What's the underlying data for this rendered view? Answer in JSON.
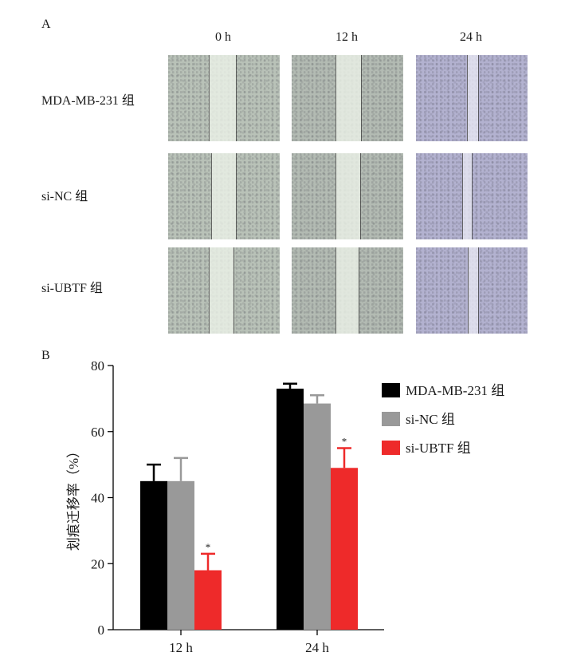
{
  "panels": {
    "a_label": "A",
    "b_label": "B"
  },
  "wound_images": {
    "columns": [
      "0  h",
      "12 h",
      "24 h"
    ],
    "rows": [
      "MDA-MB-231 组",
      "si-NC 组",
      "si-UBTF 组"
    ],
    "tint_colors": [
      "#b9c2b8",
      "#b3bbb3",
      "#b3b2d0"
    ]
  },
  "chart_data": {
    "type": "bar",
    "title": "",
    "xlabel": "",
    "ylabel": "划痕迁移率（%）",
    "categories": [
      "12 h",
      "24 h"
    ],
    "ylim": [
      0,
      80
    ],
    "yticks": [
      0,
      20,
      40,
      60,
      80
    ],
    "series": [
      {
        "name": "MDA-MB-231 组",
        "color": "#000000",
        "values": [
          45,
          73
        ],
        "errors": [
          5,
          1.5
        ]
      },
      {
        "name": "si-NC 组",
        "color": "#999999",
        "values": [
          45,
          68.5
        ],
        "errors": [
          7,
          2.5
        ]
      },
      {
        "name": "si-UBTF 组",
        "color": "#ee2a2a",
        "values": [
          18,
          49
        ],
        "errors": [
          5,
          6
        ]
      }
    ],
    "significance": {
      "marker": "*",
      "series": 2
    },
    "legend": "top-right",
    "grid": false
  }
}
